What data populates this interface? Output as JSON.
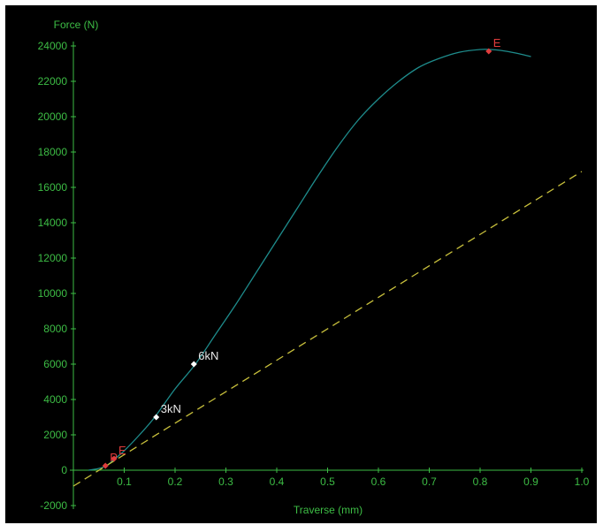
{
  "chart_data": {
    "type": "line",
    "ylabel": "Force (N)",
    "xlabel": "Traverse (mm)",
    "xlim": [
      0,
      1.0
    ],
    "ylim": [
      -2000,
      24000
    ],
    "x_ticks": [
      "0.1",
      "0.2",
      "0.3",
      "0.4",
      "0.5",
      "0.6",
      "0.7",
      "0.8",
      "0.9",
      "1.0"
    ],
    "x_tick_values": [
      0.1,
      0.2,
      0.3,
      0.4,
      0.5,
      0.6,
      0.7,
      0.8,
      0.9,
      1.0
    ],
    "y_ticks": [
      "-2000",
      "0",
      "2000",
      "4000",
      "6000",
      "8000",
      "10000",
      "12000",
      "14000",
      "16000",
      "18000",
      "20000",
      "22000",
      "24000"
    ],
    "y_tick_values": [
      -2000,
      0,
      2000,
      4000,
      6000,
      8000,
      10000,
      12000,
      14000,
      16000,
      18000,
      20000,
      22000,
      24000
    ],
    "grid": false,
    "series": [
      {
        "color": "#1e8c8c",
        "style": "solid",
        "x": [
          0.03,
          0.05,
          0.065,
          0.08,
          0.1,
          0.13,
          0.16,
          0.2,
          0.24,
          0.28,
          0.32,
          0.36,
          0.4,
          0.44,
          0.48,
          0.52,
          0.56,
          0.6,
          0.64,
          0.68,
          0.72,
          0.76,
          0.8,
          0.82,
          0.84,
          0.87,
          0.9
        ],
        "y": [
          0,
          100,
          250,
          600,
          1100,
          2000,
          3000,
          4600,
          6000,
          7700,
          9400,
          11200,
          13000,
          14800,
          16600,
          18300,
          19800,
          21000,
          22000,
          22800,
          23300,
          23650,
          23800,
          23800,
          23750,
          23600,
          23400
        ]
      },
      {
        "color": "#c8c03c",
        "style": "dashed",
        "x": [
          0.0,
          1.0
        ],
        "y": [
          -900,
          16900
        ]
      }
    ],
    "markers": [
      {
        "label": "6kN",
        "x": 0.237,
        "y": 6000,
        "color": "#ffffff"
      },
      {
        "label": "3kN",
        "x": 0.163,
        "y": 3000,
        "color": "#ffffff"
      },
      {
        "label": "E",
        "x": 0.817,
        "y": 23700,
        "color": "#e03c3c"
      },
      {
        "label": "P",
        "x": 0.063,
        "y": 250,
        "color": "#e03c3c"
      },
      {
        "label": "E",
        "x": 0.08,
        "y": 650,
        "color": "#e03c3c"
      }
    ],
    "colors": {
      "axis": "#3dbd45",
      "background": "#000000"
    }
  }
}
